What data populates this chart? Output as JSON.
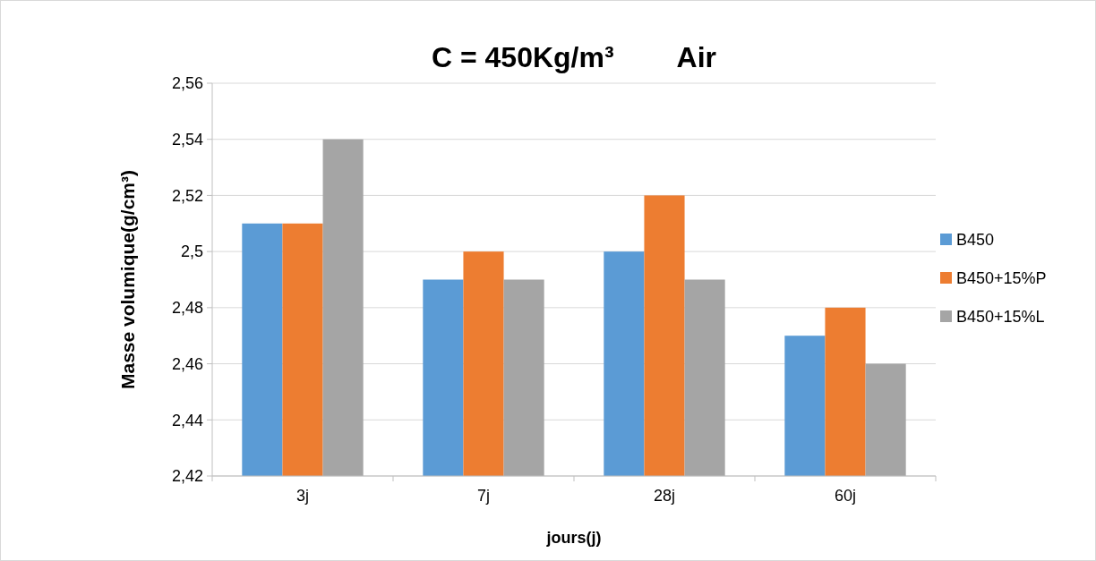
{
  "chart_data": {
    "type": "bar",
    "title": "C = 450Kg/m³        Air",
    "xlabel": "jours(j)",
    "ylabel": "Masse volumique(g/cm³)",
    "categories": [
      "3j",
      "7j",
      "28j",
      "60j"
    ],
    "series": [
      {
        "name": "B450",
        "color": "#5b9bd5",
        "values": [
          2.51,
          2.49,
          2.5,
          2.47
        ]
      },
      {
        "name": "B450+15%P",
        "color": "#ed7d31",
        "values": [
          2.51,
          2.5,
          2.52,
          2.48
        ]
      },
      {
        "name": "B450+15%L",
        "color": "#a5a5a5",
        "values": [
          2.54,
          2.49,
          2.49,
          2.46
        ]
      }
    ],
    "ylim": [
      2.42,
      2.56
    ],
    "yticks": [
      {
        "value": 2.42,
        "label": "2,42"
      },
      {
        "value": 2.44,
        "label": "2,44"
      },
      {
        "value": 2.46,
        "label": "2,46"
      },
      {
        "value": 2.48,
        "label": "2,48"
      },
      {
        "value": 2.5,
        "label": "2,5"
      },
      {
        "value": 2.52,
        "label": "2,52"
      },
      {
        "value": 2.54,
        "label": "2,54"
      },
      {
        "value": 2.56,
        "label": "2,56"
      }
    ],
    "grid": "y",
    "legend": "right"
  }
}
